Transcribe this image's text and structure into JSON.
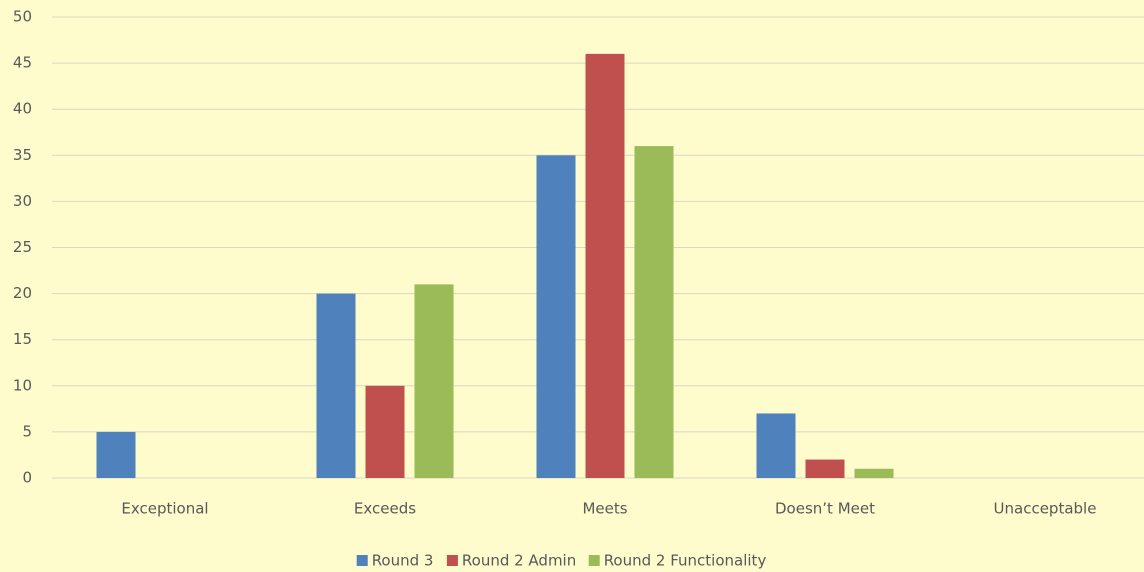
{
  "chart_data": {
    "type": "bar",
    "categories": [
      "Exceptional",
      "Exceeds",
      "Meets",
      "Doesn’t Meet",
      "Unacceptable"
    ],
    "series": [
      {
        "name": "Round 3",
        "color": "#4f81bd",
        "values": [
          5,
          20,
          35,
          7,
          0
        ]
      },
      {
        "name": "Round 2 Admin",
        "color": "#c0504d",
        "values": [
          0,
          10,
          46,
          2,
          0
        ]
      },
      {
        "name": "Round 2 Functionality",
        "color": "#9bbb59",
        "values": [
          0,
          21,
          36,
          1,
          0
        ]
      }
    ],
    "ylim": [
      0,
      50
    ],
    "yticks": [
      0,
      5,
      10,
      15,
      20,
      25,
      30,
      35,
      40,
      45,
      50
    ],
    "grid": true,
    "legend": "bottom"
  }
}
